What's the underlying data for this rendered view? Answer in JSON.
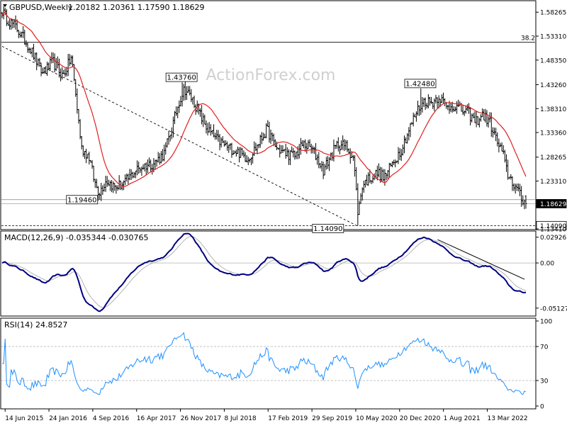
{
  "chart_data": [
    {
      "type": "line",
      "panel": "price",
      "title": "GBPUSD,Weekly",
      "ohlc_text": "1.20182 1.20361 1.17590 1.18629",
      "ylim": [
        1.1341,
        1.605
      ],
      "x_tick_labels": [
        "14 Jun 2015",
        "24 Jan 2016",
        "4 Sep 2016",
        "16 Apr 2017",
        "26 Nov 2017",
        "8 Jul 2018",
        "17 Feb 2019",
        "29 Sep 2019",
        "10 May 2020",
        "20 Dec 2020",
        "1 Aug 2021",
        "13 Mar 2022"
      ],
      "y_tick_labels": [
        "1.58265",
        "1.53310",
        "1.48350",
        "1.43260",
        "1.38310",
        "1.33360",
        "1.28265",
        "1.23310",
        "1.18629",
        "1.14090",
        "1.13410"
      ],
      "y_tick_values": [
        1.58265,
        1.5331,
        1.4835,
        1.4326,
        1.3831,
        1.3336,
        1.28265,
        1.2331,
        1.18629,
        1.1409,
        1.1341
      ],
      "watermark": "ActionForex.com",
      "current_price": 1.18629,
      "fib_level": {
        "label": "38.2",
        "value": 1.5204
      },
      "horizontal_levels": [
        1.1946,
        1.1409
      ],
      "annotations": [
        {
          "label": "1.43760",
          "week": 124,
          "value": 1.4376
        },
        {
          "label": "1.42480",
          "week": 289,
          "value": 1.4248
        },
        {
          "label": "1.19460",
          "week": 67,
          "value": 1.1946
        },
        {
          "label": "1.14090",
          "week": 237,
          "value": 1.1409
        }
      ],
      "trendlines": [
        {
          "from": [
            0,
            1.512
          ],
          "to": [
            245,
            1.1409
          ]
        }
      ],
      "series": [
        {
          "kind": "bars",
          "color": "#000000",
          "values": []
        },
        {
          "kind": "ma",
          "color": "#e02020",
          "values": []
        }
      ],
      "x_axis": {
        "weeks": 350,
        "label_week0": 2
      }
    },
    {
      "type": "line",
      "panel": "macd",
      "label": "MACD(12,26,9) -0.035344 -0.030765",
      "ylim": [
        -0.0595,
        0.0355
      ],
      "y_tick_labels": [
        "0.029261",
        "0.00",
        "-0.051279"
      ],
      "y_tick_values": [
        0.029261,
        0.0,
        -0.051279
      ],
      "series": [
        {
          "kind": "macd",
          "color": "#000080",
          "values": []
        },
        {
          "kind": "signal",
          "color": "#b4b4b4",
          "values": []
        }
      ],
      "trendlines": [
        {
          "from": [
            301,
            0.0265
          ],
          "to": [
            361,
            -0.0185
          ]
        }
      ]
    },
    {
      "type": "line",
      "panel": "rsi",
      "label": "RSI(14) 24.8527",
      "ylim": [
        0,
        100
      ],
      "y_tick_labels": [
        "100",
        "70",
        "30",
        "0"
      ],
      "y_tick_values": [
        100,
        70,
        30,
        0
      ],
      "levels": [
        70,
        30
      ],
      "series": [
        {
          "kind": "rsi",
          "color": "#1e90ff",
          "values": []
        }
      ]
    }
  ]
}
